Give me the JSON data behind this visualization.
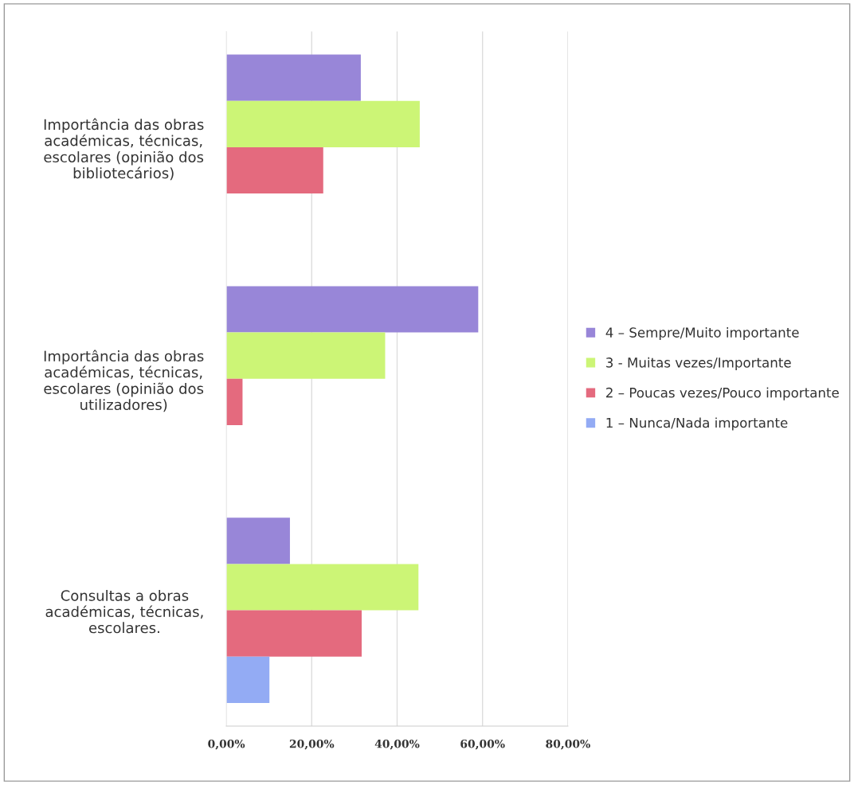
{
  "chart_data": {
    "type": "bar",
    "orientation": "horizontal",
    "categories": [
      "Importância das obras académicas, técnicas, escolares (opinião dos bibliotecários)",
      "Importância das obras académicas, técnicas, escolares (opinião dos utilizadores)",
      "Consultas a obras académicas, técnicas, escolares."
    ],
    "series": [
      {
        "name": "4 – Sempre/Muito importante",
        "color": "#9886d8",
        "values": [
          31.5,
          59.0,
          14.9
        ]
      },
      {
        "name": "3 - Muitas vezes/Importante",
        "color": "#ccf576",
        "values": [
          45.3,
          37.2,
          45.0
        ]
      },
      {
        "name": "2 – Poucas vezes/Pouco importante",
        "color": "#e46a7e",
        "values": [
          22.7,
          3.8,
          31.7
        ]
      },
      {
        "name": "1 – Nunca/Nada importante",
        "color": "#93abf4",
        "values": [
          null,
          null,
          10.1
        ]
      }
    ],
    "xlim": [
      0,
      80
    ],
    "xticks": [
      {
        "value": 0,
        "label": "0,00%"
      },
      {
        "value": 20,
        "label": "20,00%"
      },
      {
        "value": 40,
        "label": "40,00%"
      },
      {
        "value": 60,
        "label": "60,00%"
      },
      {
        "value": 80,
        "label": "80,00%"
      }
    ],
    "grid": "x",
    "legend": "right"
  }
}
